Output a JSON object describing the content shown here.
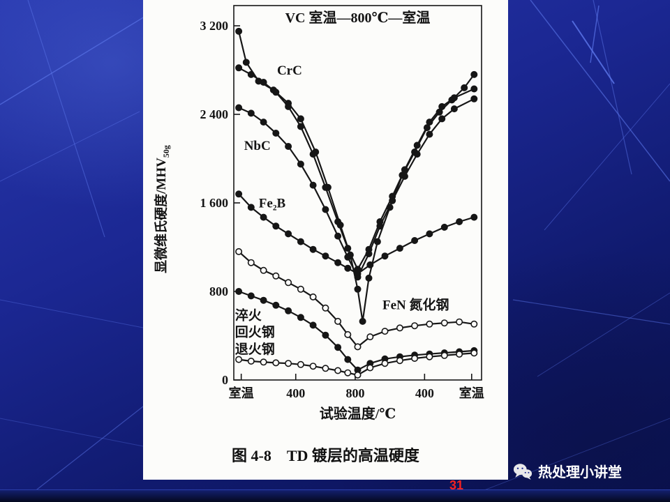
{
  "slide": {
    "caption": "图 4-8　TD 镀层的高温硬度",
    "footer_brand": "热处理小讲堂",
    "page_number": "31"
  },
  "colors": {
    "slide_background_blue": "#1b2792",
    "chart_ink": "#141414",
    "page_number_red": "#f52222",
    "footer_text_white": "#ffffff"
  },
  "chart_data": {
    "type": "line",
    "title": "VC 室温—800℃—室温",
    "xlabel": "试验温度/℃",
    "ylabel": "显微维氏硬度/MHV",
    "ylabel_subscript": "50g",
    "ylim": [
      0,
      3200
    ],
    "grid": false,
    "y_ticks": [
      {
        "label": "0",
        "value": 0
      },
      {
        "label": "800",
        "value": 800
      },
      {
        "label": "1 600",
        "value": 1600
      },
      {
        "label": "2 400",
        "value": 2400
      },
      {
        "label": "3 200",
        "value": 3200
      }
    ],
    "x_ticks": [
      {
        "label": "室温",
        "t": 0.03
      },
      {
        "label": "400",
        "t": 0.25
      },
      {
        "label": "800",
        "t": 0.49
      },
      {
        "label": "400",
        "t": 0.77
      },
      {
        "label": "室温",
        "t": 0.96
      }
    ],
    "series": [
      {
        "name": "VC",
        "marker": "filled",
        "points": [
          [
            0.02,
            3150
          ],
          [
            0.05,
            2870
          ],
          [
            0.1,
            2700
          ],
          [
            0.16,
            2620
          ],
          [
            0.22,
            2500
          ],
          [
            0.27,
            2360
          ],
          [
            0.33,
            2060
          ],
          [
            0.38,
            1740
          ],
          [
            0.43,
            1400
          ],
          [
            0.47,
            1130
          ],
          [
            0.5,
            820
          ],
          [
            0.52,
            530
          ],
          [
            0.545,
            920
          ],
          [
            0.58,
            1250
          ],
          [
            0.63,
            1560
          ],
          [
            0.68,
            1850
          ],
          [
            0.73,
            2060
          ],
          [
            0.78,
            2280
          ],
          [
            0.83,
            2420
          ],
          [
            0.88,
            2530
          ],
          [
            0.93,
            2640
          ],
          [
            0.97,
            2760
          ]
        ]
      },
      {
        "name": "CrC",
        "marker": "filled",
        "points": [
          [
            0.02,
            2820
          ],
          [
            0.07,
            2760
          ],
          [
            0.12,
            2690
          ],
          [
            0.17,
            2600
          ],
          [
            0.22,
            2470
          ],
          [
            0.27,
            2290
          ],
          [
            0.32,
            2040
          ],
          [
            0.37,
            1740
          ],
          [
            0.42,
            1430
          ],
          [
            0.46,
            1190
          ],
          [
            0.5,
            1000
          ],
          [
            0.545,
            1180
          ],
          [
            0.59,
            1430
          ],
          [
            0.64,
            1660
          ],
          [
            0.69,
            1900
          ],
          [
            0.74,
            2120
          ],
          [
            0.79,
            2330
          ],
          [
            0.84,
            2470
          ],
          [
            0.89,
            2550
          ],
          [
            0.97,
            2630
          ]
        ]
      },
      {
        "name": "NbC",
        "marker": "filled",
        "points": [
          [
            0.02,
            2460
          ],
          [
            0.07,
            2410
          ],
          [
            0.12,
            2330
          ],
          [
            0.17,
            2230
          ],
          [
            0.22,
            2110
          ],
          [
            0.27,
            1950
          ],
          [
            0.32,
            1760
          ],
          [
            0.37,
            1540
          ],
          [
            0.42,
            1300
          ],
          [
            0.46,
            1110
          ],
          [
            0.5,
            930
          ],
          [
            0.545,
            1140
          ],
          [
            0.59,
            1390
          ],
          [
            0.64,
            1620
          ],
          [
            0.69,
            1840
          ],
          [
            0.74,
            2040
          ],
          [
            0.79,
            2220
          ],
          [
            0.84,
            2360
          ],
          [
            0.89,
            2450
          ],
          [
            0.97,
            2540
          ]
        ]
      },
      {
        "name": "Fe₂B",
        "marker": "filled",
        "points": [
          [
            0.02,
            1680
          ],
          [
            0.07,
            1560
          ],
          [
            0.12,
            1470
          ],
          [
            0.17,
            1390
          ],
          [
            0.22,
            1320
          ],
          [
            0.27,
            1250
          ],
          [
            0.32,
            1180
          ],
          [
            0.37,
            1120
          ],
          [
            0.42,
            1060
          ],
          [
            0.46,
            1010
          ],
          [
            0.5,
            960
          ],
          [
            0.55,
            1040
          ],
          [
            0.61,
            1120
          ],
          [
            0.67,
            1190
          ],
          [
            0.73,
            1260
          ],
          [
            0.79,
            1320
          ],
          [
            0.85,
            1380
          ],
          [
            0.91,
            1430
          ],
          [
            0.97,
            1470
          ]
        ]
      },
      {
        "name": "FeN 氮化钢",
        "marker": "open",
        "points": [
          [
            0.02,
            1160
          ],
          [
            0.07,
            1060
          ],
          [
            0.12,
            990
          ],
          [
            0.17,
            940
          ],
          [
            0.22,
            880
          ],
          [
            0.27,
            820
          ],
          [
            0.32,
            750
          ],
          [
            0.37,
            650
          ],
          [
            0.42,
            530
          ],
          [
            0.46,
            410
          ],
          [
            0.5,
            300
          ],
          [
            0.55,
            390
          ],
          [
            0.61,
            440
          ],
          [
            0.67,
            470
          ],
          [
            0.73,
            490
          ],
          [
            0.79,
            505
          ],
          [
            0.85,
            515
          ],
          [
            0.91,
            525
          ],
          [
            0.97,
            505
          ]
        ]
      },
      {
        "name": "淬火回火钢",
        "marker": "filled",
        "points": [
          [
            0.02,
            800
          ],
          [
            0.07,
            760
          ],
          [
            0.12,
            720
          ],
          [
            0.17,
            675
          ],
          [
            0.22,
            625
          ],
          [
            0.27,
            565
          ],
          [
            0.32,
            495
          ],
          [
            0.37,
            405
          ],
          [
            0.42,
            295
          ],
          [
            0.46,
            185
          ],
          [
            0.5,
            90
          ],
          [
            0.55,
            150
          ],
          [
            0.61,
            190
          ],
          [
            0.67,
            210
          ],
          [
            0.73,
            225
          ],
          [
            0.79,
            235
          ],
          [
            0.85,
            245
          ],
          [
            0.91,
            255
          ],
          [
            0.97,
            265
          ]
        ]
      },
      {
        "name": "退火钢",
        "marker": "open",
        "points": [
          [
            0.02,
            185
          ],
          [
            0.07,
            170
          ],
          [
            0.12,
            162
          ],
          [
            0.17,
            155
          ],
          [
            0.22,
            150
          ],
          [
            0.27,
            140
          ],
          [
            0.32,
            125
          ],
          [
            0.37,
            105
          ],
          [
            0.42,
            85
          ],
          [
            0.46,
            65
          ],
          [
            0.5,
            45
          ],
          [
            0.55,
            110
          ],
          [
            0.61,
            150
          ],
          [
            0.67,
            175
          ],
          [
            0.73,
            195
          ],
          [
            0.79,
            210
          ],
          [
            0.85,
            222
          ],
          [
            0.91,
            233
          ],
          [
            0.97,
            243
          ]
        ]
      }
    ],
    "annotations": [
      {
        "text": "CrC",
        "t": 0.225,
        "value": 2760,
        "anchor": "middle"
      },
      {
        "text": "NbC",
        "t": 0.095,
        "value": 2080,
        "anchor": "middle"
      },
      {
        "text": "Fe₂B",
        "t": 0.155,
        "value": 1560,
        "anchor": "middle"
      },
      {
        "text": "FeN 氮化钢",
        "t": 0.6,
        "value": 640,
        "anchor": "start"
      },
      {
        "text": "淬火",
        "t": 0.005,
        "value": 545,
        "anchor": "start"
      },
      {
        "text": "回火钢",
        "t": 0.005,
        "value": 395,
        "anchor": "start"
      },
      {
        "text": "退火钢",
        "t": 0.005,
        "value": 240,
        "anchor": "start"
      }
    ]
  }
}
